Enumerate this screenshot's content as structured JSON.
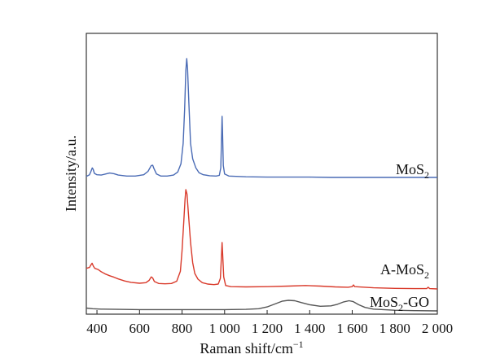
{
  "chart_data": {
    "type": "line",
    "title": "",
    "xlabel": {
      "main": "Raman shift/cm",
      "sup": "−1"
    },
    "ylabel": "Intensity/a.u.",
    "xlim": [
      350,
      2000
    ],
    "ylim": [
      0,
      1
    ],
    "x_ticks": [
      {
        "value": 400,
        "label": "400"
      },
      {
        "value": 600,
        "label": "600"
      },
      {
        "value": 800,
        "label": "800"
      },
      {
        "value": 1000,
        "label": "1 000"
      },
      {
        "value": 1200,
        "label": "1 200"
      },
      {
        "value": 1400,
        "label": "1 400"
      },
      {
        "value": 1600,
        "label": "1 600"
      },
      {
        "value": 1800,
        "label": "1 800"
      },
      {
        "value": 2000,
        "label": "2 000"
      }
    ],
    "grid": false,
    "legend": "inline labels at right",
    "series": [
      {
        "label": {
          "main": "MoS",
          "sub": "2",
          "suffix": ""
        },
        "color": "#4a6bb5",
        "points": [
          [
            350,
            0.523
          ],
          [
            365,
            0.528
          ],
          [
            372,
            0.538
          ],
          [
            378,
            0.548
          ],
          [
            382,
            0.544
          ],
          [
            388,
            0.532
          ],
          [
            400,
            0.528
          ],
          [
            420,
            0.527
          ],
          [
            440,
            0.53
          ],
          [
            460,
            0.533
          ],
          [
            480,
            0.531
          ],
          [
            500,
            0.527
          ],
          [
            540,
            0.524
          ],
          [
            580,
            0.524
          ],
          [
            620,
            0.528
          ],
          [
            640,
            0.538
          ],
          [
            655,
            0.555
          ],
          [
            662,
            0.556
          ],
          [
            668,
            0.546
          ],
          [
            680,
            0.53
          ],
          [
            700,
            0.524
          ],
          [
            730,
            0.524
          ],
          [
            760,
            0.527
          ],
          [
            780,
            0.536
          ],
          [
            795,
            0.56
          ],
          [
            805,
            0.62
          ],
          [
            812,
            0.72
          ],
          [
            818,
            0.835
          ],
          [
            822,
            0.87
          ],
          [
            826,
            0.84
          ],
          [
            832,
            0.74
          ],
          [
            840,
            0.62
          ],
          [
            850,
            0.575
          ],
          [
            865,
            0.548
          ],
          [
            880,
            0.534
          ],
          [
            900,
            0.528
          ],
          [
            930,
            0.525
          ],
          [
            960,
            0.524
          ],
          [
            975,
            0.526
          ],
          [
            982,
            0.548
          ],
          [
            986,
            0.64
          ],
          [
            988,
            0.7
          ],
          [
            990,
            0.66
          ],
          [
            994,
            0.555
          ],
          [
            1000,
            0.53
          ],
          [
            1020,
            0.524
          ],
          [
            1100,
            0.522
          ],
          [
            1200,
            0.521
          ],
          [
            1300,
            0.521
          ],
          [
            1400,
            0.521
          ],
          [
            1500,
            0.52
          ],
          [
            1600,
            0.52
          ],
          [
            1700,
            0.52
          ],
          [
            1800,
            0.52
          ],
          [
            1900,
            0.52
          ],
          [
            2000,
            0.52
          ]
        ]
      },
      {
        "label": {
          "main": "A-MoS",
          "sub": "2",
          "suffix": ""
        },
        "color": "#d93a2b",
        "points": [
          [
            350,
            0.2
          ],
          [
            365,
            0.203
          ],
          [
            370,
            0.21
          ],
          [
            377,
            0.218
          ],
          [
            383,
            0.208
          ],
          [
            390,
            0.2
          ],
          [
            405,
            0.196
          ],
          [
            420,
            0.188
          ],
          [
            440,
            0.18
          ],
          [
            460,
            0.174
          ],
          [
            480,
            0.169
          ],
          [
            500,
            0.163
          ],
          [
            530,
            0.156
          ],
          [
            560,
            0.151
          ],
          [
            600,
            0.148
          ],
          [
            630,
            0.15
          ],
          [
            645,
            0.158
          ],
          [
            655,
            0.17
          ],
          [
            662,
            0.166
          ],
          [
            670,
            0.154
          ],
          [
            690,
            0.147
          ],
          [
            720,
            0.146
          ],
          [
            750,
            0.147
          ],
          [
            775,
            0.155
          ],
          [
            792,
            0.19
          ],
          [
            800,
            0.26
          ],
          [
            808,
            0.36
          ],
          [
            814,
            0.44
          ],
          [
            818,
            0.475
          ],
          [
            823,
            0.46
          ],
          [
            830,
            0.39
          ],
          [
            840,
            0.29
          ],
          [
            850,
            0.22
          ],
          [
            860,
            0.182
          ],
          [
            875,
            0.162
          ],
          [
            895,
            0.15
          ],
          [
            920,
            0.145
          ],
          [
            950,
            0.143
          ],
          [
            970,
            0.145
          ],
          [
            980,
            0.165
          ],
          [
            985,
            0.24
          ],
          [
            988,
            0.29
          ],
          [
            991,
            0.25
          ],
          [
            996,
            0.17
          ],
          [
            1005,
            0.14
          ],
          [
            1030,
            0.136
          ],
          [
            1100,
            0.135
          ],
          [
            1200,
            0.136
          ],
          [
            1300,
            0.138
          ],
          [
            1380,
            0.14
          ],
          [
            1450,
            0.138
          ],
          [
            1520,
            0.135
          ],
          [
            1580,
            0.134
          ],
          [
            1600,
            0.136
          ],
          [
            1606,
            0.142
          ],
          [
            1612,
            0.136
          ],
          [
            1700,
            0.132
          ],
          [
            1800,
            0.13
          ],
          [
            1900,
            0.129
          ],
          [
            1950,
            0.129
          ],
          [
            1957,
            0.134
          ],
          [
            1964,
            0.129
          ],
          [
            2000,
            0.128
          ]
        ]
      },
      {
        "label": {
          "main": "MoS",
          "sub": "2",
          "suffix": "-GO"
        },
        "color": "#555555",
        "points": [
          [
            350,
            0.025
          ],
          [
            380,
            0.022
          ],
          [
            420,
            0.02
          ],
          [
            500,
            0.019
          ],
          [
            600,
            0.018
          ],
          [
            700,
            0.018
          ],
          [
            800,
            0.018
          ],
          [
            900,
            0.018
          ],
          [
            1000,
            0.018
          ],
          [
            1100,
            0.019
          ],
          [
            1160,
            0.022
          ],
          [
            1200,
            0.03
          ],
          [
            1240,
            0.045
          ],
          [
            1270,
            0.056
          ],
          [
            1300,
            0.06
          ],
          [
            1330,
            0.058
          ],
          [
            1360,
            0.05
          ],
          [
            1400,
            0.04
          ],
          [
            1450,
            0.033
          ],
          [
            1500,
            0.035
          ],
          [
            1530,
            0.042
          ],
          [
            1560,
            0.053
          ],
          [
            1585,
            0.058
          ],
          [
            1605,
            0.054
          ],
          [
            1630,
            0.04
          ],
          [
            1660,
            0.028
          ],
          [
            1700,
            0.02
          ],
          [
            1800,
            0.015
          ],
          [
            1900,
            0.013
          ],
          [
            2000,
            0.012
          ]
        ]
      }
    ]
  }
}
